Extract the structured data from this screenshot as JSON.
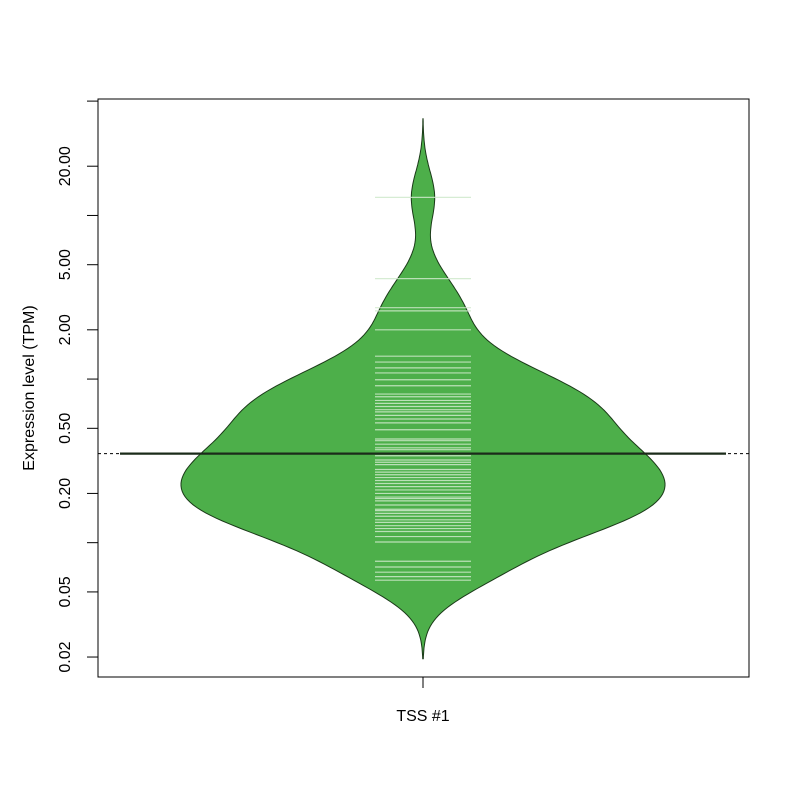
{
  "chart_data": {
    "type": "beanplot",
    "x_label": "TSS #1",
    "y_label": "Expression level (TPM)",
    "log_y": true,
    "color": "#4daf4a",
    "ylim": [
      0.0151,
      51.5
    ],
    "yticks": [
      {
        "value": 50,
        "label": null
      },
      {
        "value": 20,
        "label": "20.00"
      },
      {
        "value": 10,
        "label": null
      },
      {
        "value": 5,
        "label": "5.00"
      },
      {
        "value": 2,
        "label": "2.00"
      },
      {
        "value": 1,
        "label": null
      },
      {
        "value": 0.5,
        "label": "0.50"
      },
      {
        "value": 0.2,
        "label": "0.20"
      },
      {
        "value": 0.1,
        "label": null
      },
      {
        "value": 0.05,
        "label": "0.05"
      },
      {
        "value": 0.02,
        "label": "0.02"
      }
    ],
    "mean_line": 0.35,
    "values": [
      12.9,
      4.11,
      2.73,
      2.61,
      2.0,
      1.38,
      1.27,
      1.17,
      1.09,
      0.99,
      0.91,
      0.81,
      0.78,
      0.74,
      0.71,
      0.68,
      0.65,
      0.63,
      0.6,
      0.57,
      0.54,
      0.49,
      0.43,
      0.42,
      0.4,
      0.38,
      0.37,
      0.35,
      0.34,
      0.32,
      0.31,
      0.3,
      0.28,
      0.27,
      0.26,
      0.25,
      0.24,
      0.23,
      0.22,
      0.21,
      0.2,
      0.19,
      0.186,
      0.18,
      0.17,
      0.16,
      0.157,
      0.151,
      0.145,
      0.138,
      0.133,
      0.127,
      0.122,
      0.117,
      0.109,
      0.101,
      0.077,
      0.071,
      0.066,
      0.062,
      0.059
    ]
  }
}
